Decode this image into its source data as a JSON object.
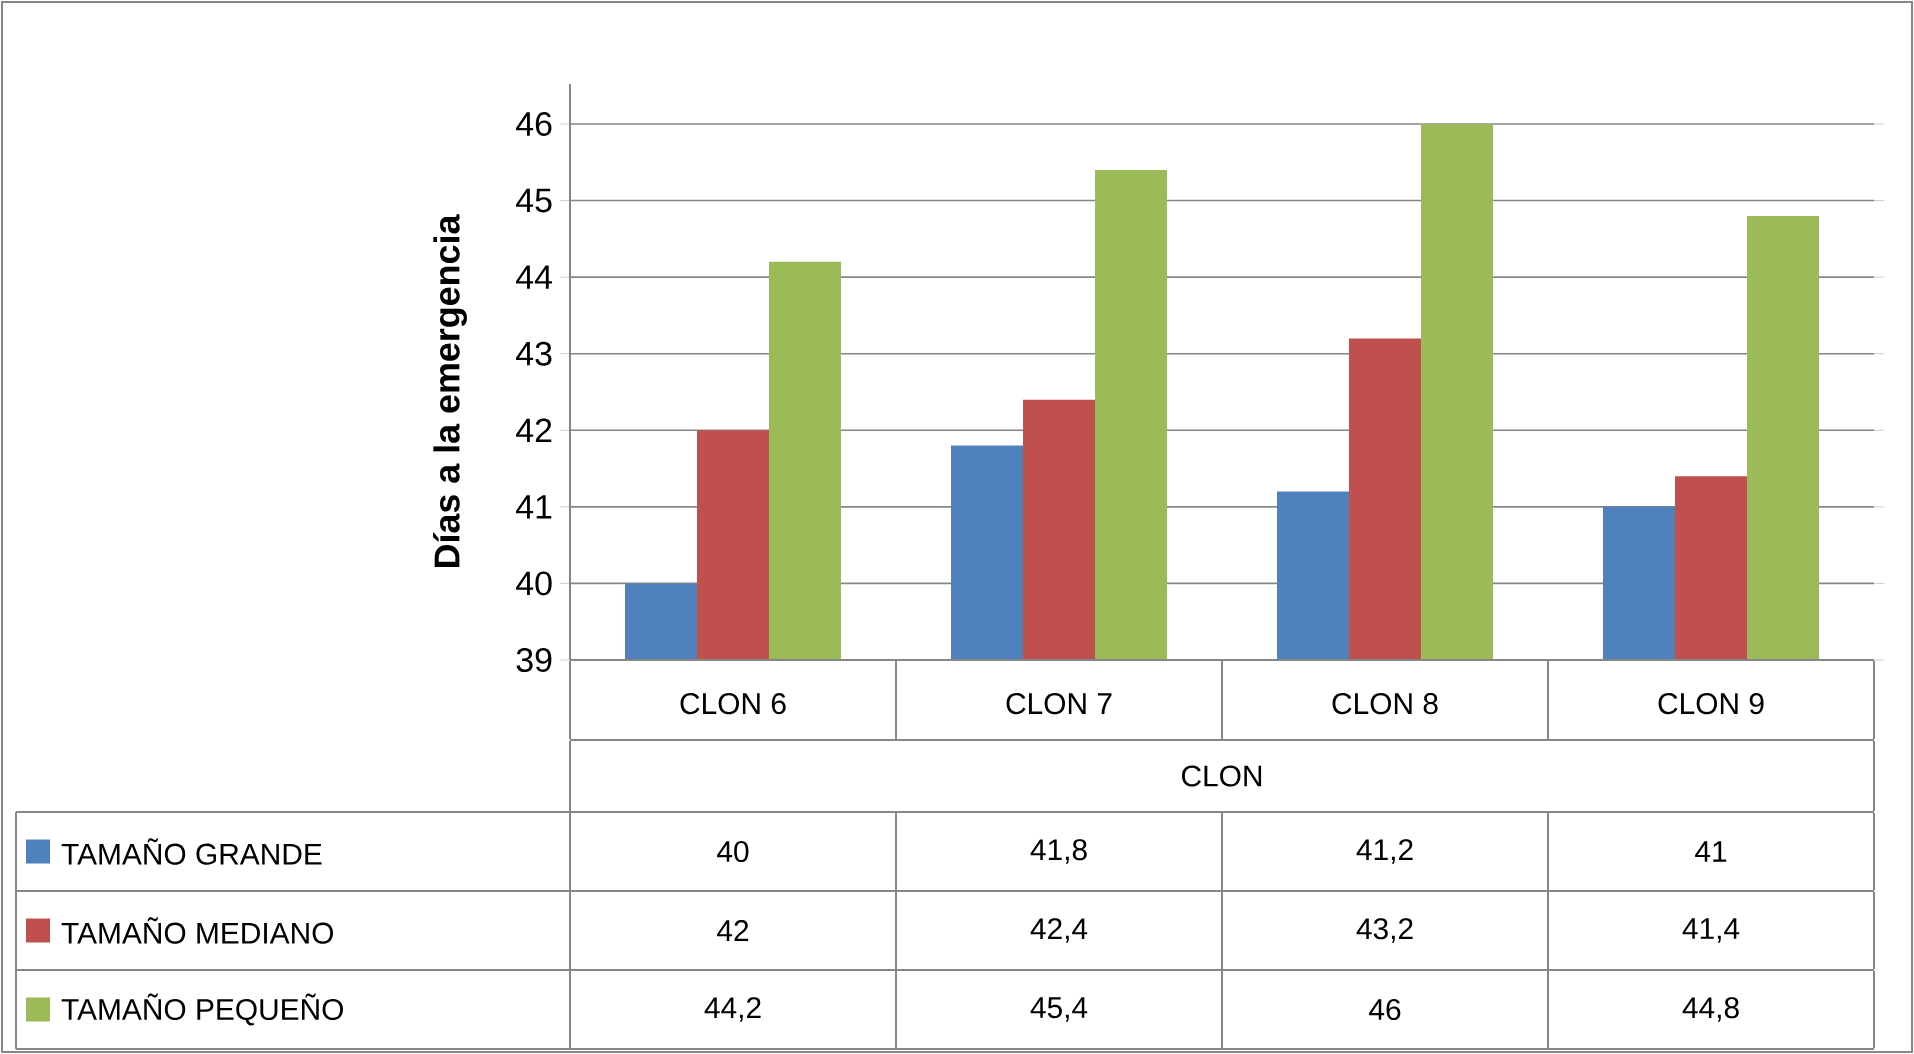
{
  "chart_data": {
    "type": "bar",
    "ylabel": "Días a la emergencia",
    "xlabel": "CLON",
    "categories": [
      "CLON 6",
      "CLON 7",
      "CLON 8",
      "CLON 9"
    ],
    "series": [
      {
        "name": "TAMAÑO GRANDE",
        "color": "#4f81bd",
        "values": [
          40,
          41.8,
          41.2,
          41
        ],
        "value_labels": [
          "40",
          "41,8",
          "41,2",
          "41"
        ]
      },
      {
        "name": "TAMAÑO MEDIANO",
        "color": "#c0504d",
        "values": [
          42,
          42.4,
          43.2,
          41.4
        ],
        "value_labels": [
          "42",
          "42,4",
          "43,2",
          "41,4"
        ]
      },
      {
        "name": "TAMAÑO PEQUEÑO",
        "color": "#9bbb59",
        "values": [
          44.2,
          45.4,
          46,
          44.8
        ],
        "value_labels": [
          "44,2",
          "45,4",
          "46",
          "44,8"
        ]
      }
    ],
    "ylim": [
      39,
      46
    ],
    "yticks": [
      39,
      40,
      41,
      42,
      43,
      44,
      45,
      46
    ],
    "grid": "y",
    "legend": "bottom"
  }
}
